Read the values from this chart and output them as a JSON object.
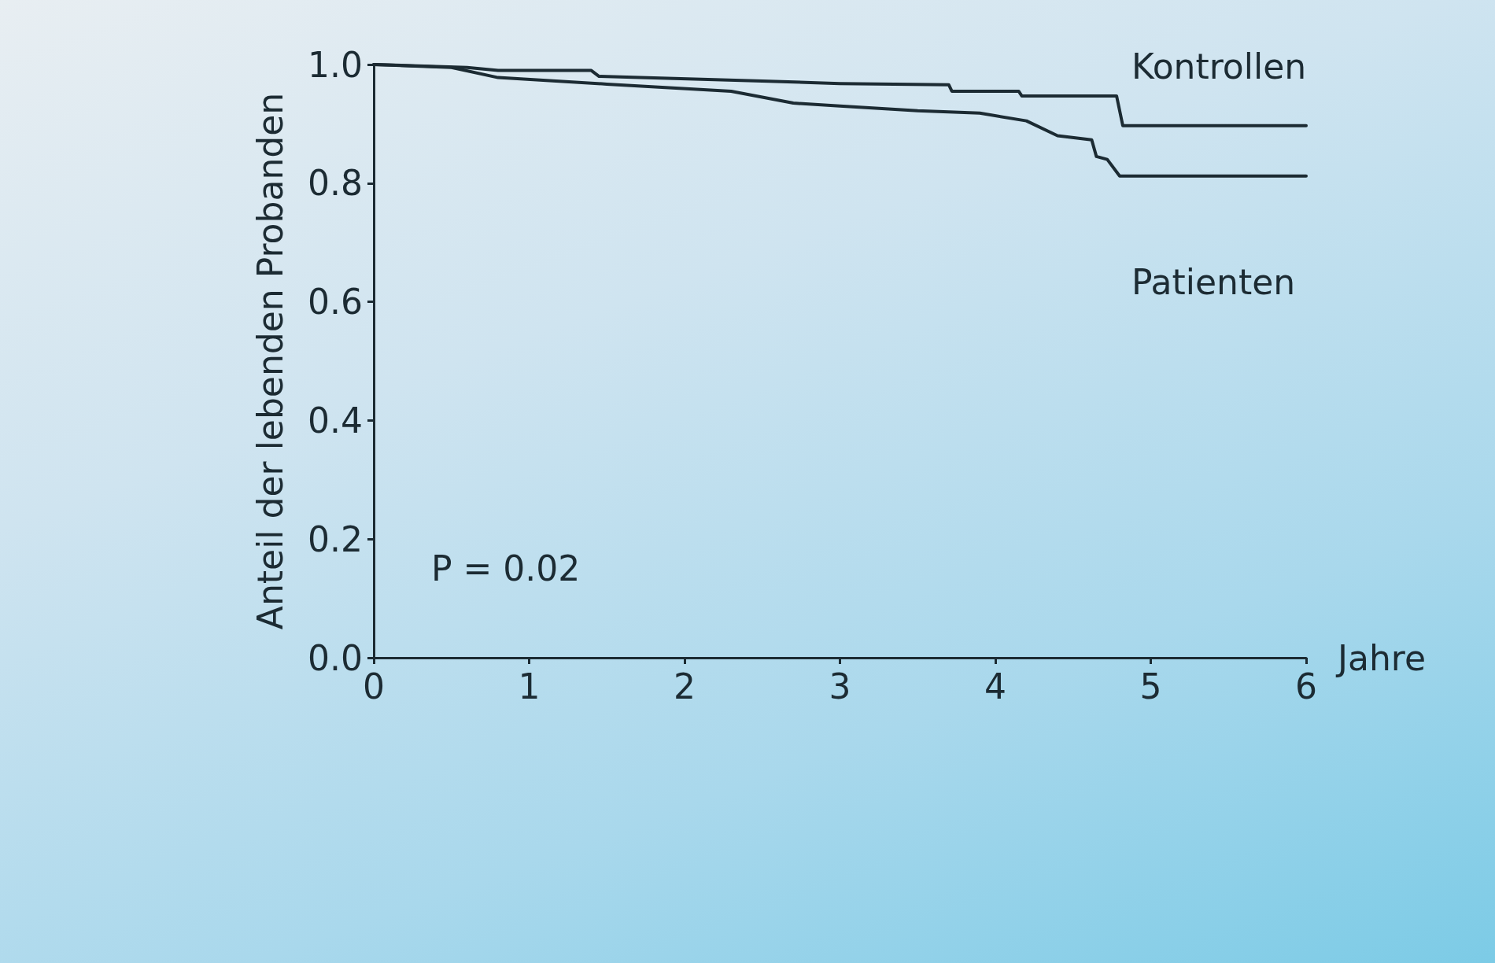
{
  "chart_data": {
    "type": "line",
    "ylabel": "Anteil der lebenden Probanden",
    "xlabel": "Jahre",
    "xlim": [
      0,
      6
    ],
    "xticks": [
      0,
      1,
      2,
      3,
      4,
      5,
      6
    ],
    "ylim": [
      0,
      1
    ],
    "yticks": [
      {
        "value": 0,
        "label": "0.0"
      },
      0.2,
      0.4,
      0.6,
      0.8,
      {
        "value": 1,
        "label": "1.0"
      }
    ],
    "grid": false,
    "legend": false,
    "marker": "none",
    "line_style": "solid",
    "annotations": [
      "P = 0.02"
    ],
    "series": [
      {
        "name": "Kontrollen",
        "color": "#1c2b33",
        "x": [
          0,
          0.6,
          0.8,
          1.4,
          1.45,
          2.5,
          3.0,
          3.7,
          3.72,
          4.15,
          4.17,
          4.78,
          4.82,
          6
        ],
        "values": [
          1,
          0.995,
          0.99,
          0.99,
          0.98,
          0.972,
          0.968,
          0.966,
          0.955,
          0.955,
          0.947,
          0.947,
          0.897,
          0.897
        ]
      },
      {
        "name": "Patienten",
        "color": "#1c2b33",
        "x": [
          0,
          0.5,
          0.8,
          1.5,
          2.3,
          2.7,
          3.0,
          3.5,
          3.9,
          4.2,
          4.4,
          4.62,
          4.65,
          4.72,
          4.8,
          6
        ],
        "values": [
          1,
          0.995,
          0.978,
          0.967,
          0.955,
          0.935,
          0.93,
          0.922,
          0.918,
          0.905,
          0.88,
          0.873,
          0.845,
          0.84,
          0.812,
          0.812
        ]
      }
    ]
  }
}
